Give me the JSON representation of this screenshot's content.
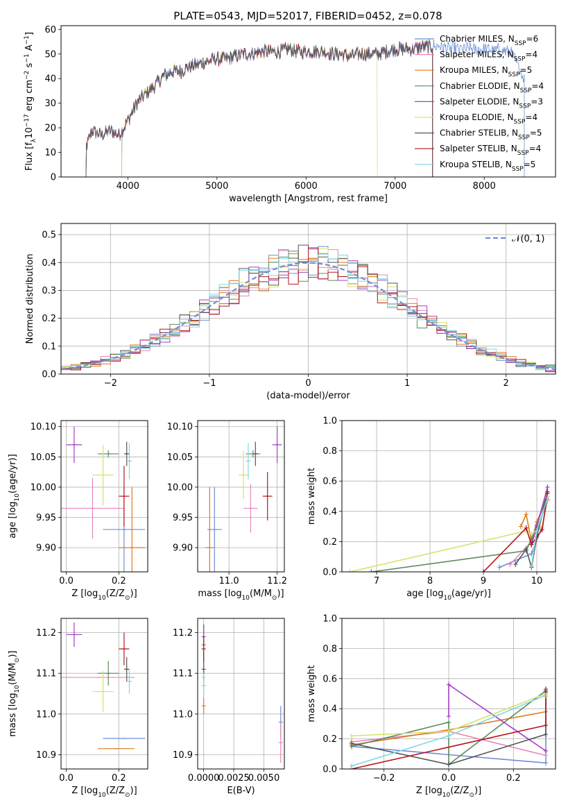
{
  "colors": {
    "series": [
      "#6c8ed6",
      "#e886b8",
      "#e07a1f",
      "#5c8a5c",
      "#a23fc0",
      "#d6e26c",
      "#555555",
      "#b5161c",
      "#7fd8e3"
    ],
    "gauss": "#6d8fd8"
  },
  "figure_title": "PLATE=0543, MJD=52017, FIBERID=0452, z=0.078",
  "chart_data": [
    {
      "id": "spectrum",
      "type": "line",
      "xlabel": "wavelength [Angstrom, rest frame]",
      "ylabel_parts": [
        "Flux [f",
        "λ",
        "10",
        "−17",
        " erg cm",
        "−2",
        " s",
        "−1",
        " A",
        "−1",
        "]"
      ],
      "xlim": [
        3250,
        8800
      ],
      "ylim": [
        0,
        61.5
      ],
      "xticks": [
        4000,
        5000,
        6000,
        7000,
        8000
      ],
      "yticks": [
        0,
        10,
        20,
        30,
        40,
        50,
        60
      ],
      "grid": false,
      "legend_position": "right",
      "legend": [
        {
          "label": "Chabrier MILES, N",
          "sub": "SSP",
          "suffix": "=6"
        },
        {
          "label": "Salpeter MILES, N",
          "sub": "SSP",
          "suffix": "=4"
        },
        {
          "label": "Kroupa MILES, N",
          "sub": "SSP",
          "suffix": "=5"
        },
        {
          "label": "Chabrier ELODIE, N",
          "sub": "SSP",
          "suffix": "=4"
        },
        {
          "label": "Salpeter ELODIE, N",
          "sub": "SSP",
          "suffix": "=3"
        },
        {
          "label": "Kroupa ELODIE, N",
          "sub": "SSP",
          "suffix": "=4"
        },
        {
          "label": "Chabrier STELIB, N",
          "sub": "SSP",
          "suffix": "=5"
        },
        {
          "label": "Salpeter STELIB, N",
          "sub": "SSP",
          "suffix": "=4"
        },
        {
          "label": "Kroupa STELIB, N",
          "sub": "SSP",
          "suffix": "=5"
        }
      ],
      "anchors": {
        "x": [
          3530,
          3600,
          3700,
          3800,
          3900,
          4000,
          4100,
          4200,
          4300,
          4400,
          4500,
          4600,
          4700,
          4800,
          4900,
          5000,
          5100,
          5200,
          5300,
          5400,
          5500,
          5600,
          5700,
          5800,
          5900,
          6000,
          6100,
          6200,
          6300,
          6400,
          6500,
          6600,
          6700,
          6800,
          6900,
          7000,
          7100,
          7200,
          7300,
          7400,
          7500,
          7600,
          7700,
          8000,
          8300,
          8450
        ],
        "y": [
          12,
          19,
          17,
          19,
          17,
          23,
          30,
          34,
          37,
          41,
          43,
          43,
          45,
          46,
          47,
          48,
          48,
          49,
          50,
          50,
          51,
          51,
          51,
          52,
          51,
          51,
          51,
          51,
          50,
          50,
          49,
          50,
          50,
          50,
          51,
          52,
          52,
          52,
          53,
          53,
          53,
          52,
          52,
          52,
          51,
          40
        ]
      },
      "ranges": [
        [
          3530,
          8450
        ],
        [
          3530,
          7420
        ],
        [
          3530,
          7420
        ],
        [
          3930,
          7420
        ],
        [
          3930,
          7420
        ],
        [
          3930,
          6800
        ],
        [
          3530,
          7420
        ],
        [
          3530,
          7420
        ],
        [
          3930,
          7420
        ]
      ]
    },
    {
      "id": "residuals",
      "type": "step",
      "xlabel": "(data-model)/error",
      "ylabel": "Normed distribution",
      "xlim": [
        -2.5,
        2.5
      ],
      "ylim": [
        0,
        0.54
      ],
      "xticks": [
        -2,
        -1,
        0,
        1,
        2
      ],
      "xtick_labels": [
        "−2",
        "−1",
        "0",
        "1",
        "2"
      ],
      "yticks": [
        0.0,
        0.1,
        0.2,
        0.3,
        0.4,
        0.5
      ],
      "ytick_labels": [
        "0.0",
        "0.1",
        "0.2",
        "0.3",
        "0.4",
        "0.5"
      ],
      "grid": true,
      "bin_width": 0.1,
      "legend": {
        "label": "𝒩(0, 1)"
      },
      "legend_position": "upper right"
    },
    {
      "id": "z-vs-age",
      "type": "scatter",
      "xlabel_parts": [
        "Z [log",
        "10",
        "(Z/Z",
        "⊙",
        ")]"
      ],
      "ylabel_parts": [
        "age  [log",
        "10",
        "(age/yr)]"
      ],
      "xlim": [
        -0.02,
        0.31
      ],
      "ylim": [
        9.86,
        10.11
      ],
      "xticks": [
        0.0,
        0.2
      ],
      "xtick_labels": [
        "0.0",
        "0.2"
      ],
      "yticks": [
        9.9,
        9.95,
        10.0,
        10.05,
        10.1
      ],
      "ytick_labels": [
        "9.90",
        "9.95",
        "10.00",
        "10.05",
        "10.10"
      ],
      "grid": true,
      "points": [
        {
          "x": 0.22,
          "y": 9.93,
          "xerr": 0.08,
          "yerr": 0.07
        },
        {
          "x": 0.1,
          "y": 9.965,
          "xerr": 0.12,
          "yerr": 0.05
        },
        {
          "x": 0.25,
          "y": 9.9,
          "xerr": 0.05,
          "yerr": 0.1
        },
        {
          "x": 0.16,
          "y": 10.055,
          "xerr": 0.04,
          "yerr": 0.006
        },
        {
          "x": 0.03,
          "y": 10.07,
          "xerr": 0.03,
          "yerr": 0.03
        },
        {
          "x": 0.14,
          "y": 10.02,
          "xerr": 0.04,
          "yerr": 0.05
        },
        {
          "x": 0.23,
          "y": 10.055,
          "xerr": 0.01,
          "yerr": 0.02
        },
        {
          "x": 0.22,
          "y": 9.985,
          "xerr": 0.02,
          "yerr": 0.05
        },
        {
          "x": 0.24,
          "y": 10.043,
          "xerr": 0.01,
          "yerr": 0.03
        }
      ]
    },
    {
      "id": "mass-vs-age",
      "type": "scatter",
      "xlabel_parts": [
        "mass [log",
        "10",
        "(M/M",
        "⊙",
        ")]"
      ],
      "xlim": [
        10.87,
        11.23
      ],
      "ylim": [
        9.86,
        10.11
      ],
      "xticks": [
        11.0,
        11.2
      ],
      "xtick_labels": [
        "11.0",
        "11.2"
      ],
      "yticks": [
        9.9,
        9.95,
        10.0,
        10.05,
        10.1
      ],
      "ytick_labels": [
        "9.90",
        "9.95",
        "10.00",
        "10.05",
        "10.10"
      ],
      "grid": true,
      "points": [
        {
          "x": 10.94,
          "y": 9.93,
          "xerr": 0.03,
          "yerr": 0.07
        },
        {
          "x": 11.09,
          "y": 9.965,
          "xerr": 0.03,
          "yerr": 0.04
        },
        {
          "x": 10.92,
          "y": 9.9,
          "xerr": 0.02,
          "yerr": 0.1
        },
        {
          "x": 11.1,
          "y": 10.055,
          "xerr": 0.03,
          "yerr": 0.006
        },
        {
          "x": 11.2,
          "y": 10.07,
          "xerr": 0.02,
          "yerr": 0.03
        },
        {
          "x": 11.06,
          "y": 10.02,
          "xerr": 0.02,
          "yerr": 0.04
        },
        {
          "x": 11.11,
          "y": 10.055,
          "xerr": 0.01,
          "yerr": 0.02
        },
        {
          "x": 11.16,
          "y": 9.985,
          "xerr": 0.02,
          "yerr": 0.04
        },
        {
          "x": 11.08,
          "y": 10.043,
          "xerr": 0.01,
          "yerr": 0.03
        }
      ]
    },
    {
      "id": "age-vs-weight",
      "type": "line",
      "xlabel_parts": [
        "age  [log",
        "10",
        "(age/yr)]"
      ],
      "ylabel": "mass weight",
      "xlim": [
        6.35,
        10.35
      ],
      "ylim": [
        0,
        1.0
      ],
      "xticks": [
        7,
        8,
        9,
        10
      ],
      "xtick_labels": [
        "7",
        "8",
        "9",
        "10"
      ],
      "yticks": [
        0.0,
        0.2,
        0.4,
        0.6,
        0.8,
        1.0
      ],
      "ytick_labels": [
        "0.0",
        "0.2",
        "0.4",
        "0.6",
        "0.8",
        "1.0"
      ],
      "grid": true,
      "series": [
        {
          "x": [
            9.3,
            9.9,
            10.1,
            10.2
          ],
          "y": [
            0.03,
            0.12,
            0.3,
            0.48
          ]
        },
        {
          "x": [
            9.5,
            9.9,
            10.0,
            10.2
          ],
          "y": [
            0.05,
            0.2,
            0.28,
            0.47
          ]
        },
        {
          "x": [
            9.7,
            9.8,
            9.9,
            10.0,
            10.2
          ],
          "y": [
            0.3,
            0.38,
            0.2,
            0.33,
            0.5
          ]
        },
        {
          "x": [
            6.9,
            9.8,
            9.9,
            10.0,
            10.2
          ],
          "y": [
            0.0,
            0.14,
            0.22,
            0.31,
            0.52
          ]
        },
        {
          "x": [
            9.9,
            10.0,
            10.2
          ],
          "y": [
            0.18,
            0.3,
            0.56
          ]
        },
        {
          "x": [
            6.5,
            9.8,
            9.9,
            10.1,
            10.2
          ],
          "y": [
            0.0,
            0.27,
            0.25,
            0.3,
            0.5
          ]
        },
        {
          "x": [
            9.6,
            9.8,
            9.9,
            10.0,
            10.2
          ],
          "y": [
            0.05,
            0.15,
            0.03,
            0.23,
            0.53
          ]
        },
        {
          "x": [
            9.0,
            9.8,
            9.9,
            10.1,
            10.2
          ],
          "y": [
            0.0,
            0.29,
            0.18,
            0.28,
            0.52
          ]
        },
        {
          "x": [
            9.9,
            10.0,
            10.2
          ],
          "y": [
            0.04,
            0.27,
            0.49
          ]
        }
      ]
    },
    {
      "id": "z-vs-mass",
      "type": "scatter",
      "xlabel_parts": [
        "Z [log",
        "10",
        "(Z/Z",
        "⊙",
        ")]"
      ],
      "ylabel_parts": [
        "mass [log",
        "10",
        "(M/M",
        "⊙",
        ")]"
      ],
      "xlim": [
        -0.02,
        0.31
      ],
      "ylim": [
        10.865,
        11.235
      ],
      "xticks": [
        0.0,
        0.2
      ],
      "xtick_labels": [
        "0.0",
        "0.2"
      ],
      "yticks": [
        10.9,
        11.0,
        11.1,
        11.2
      ],
      "ytick_labels": [
        "10.9",
        "11.0",
        "11.1",
        "11.2"
      ],
      "grid": true,
      "points": [
        {
          "x": 0.22,
          "y": 10.94,
          "xerr": 0.08,
          "yerr": 0.0
        },
        {
          "x": 0.12,
          "y": 11.09,
          "xerr": 0.14,
          "yerr": 0.0
        },
        {
          "x": 0.19,
          "y": 10.915,
          "xerr": 0.07,
          "yerr": 0.0
        },
        {
          "x": 0.16,
          "y": 11.1,
          "xerr": 0.04,
          "yerr": 0.03
        },
        {
          "x": 0.03,
          "y": 11.195,
          "xerr": 0.03,
          "yerr": 0.03
        },
        {
          "x": 0.14,
          "y": 11.055,
          "xerr": 0.04,
          "yerr": 0.05
        },
        {
          "x": 0.23,
          "y": 11.11,
          "xerr": 0.01,
          "yerr": 0.03
        },
        {
          "x": 0.22,
          "y": 11.16,
          "xerr": 0.02,
          "yerr": 0.04
        },
        {
          "x": 0.24,
          "y": 11.08,
          "xerr": 0.01,
          "yerr": 0.03
        }
      ]
    },
    {
      "id": "ebv-vs-mass",
      "type": "scatter",
      "xlabel": "E(B-V)",
      "xlim": [
        -0.0005,
        0.0067
      ],
      "ylim": [
        10.865,
        11.235
      ],
      "xticks": [
        0.0,
        0.0025,
        0.005
      ],
      "xtick_labels": [
        "0.0000",
        "0.0025",
        "0.0050"
      ],
      "yticks": [
        10.9,
        11.0,
        11.1,
        11.2
      ],
      "ytick_labels": [
        "10.9",
        "11.0",
        "11.1",
        "11.2"
      ],
      "grid": true,
      "points": [
        {
          "x": 0.0064,
          "y": 10.98,
          "xerr": 0.0,
          "yerr": 0.04
        },
        {
          "x": 0.0064,
          "y": 10.93,
          "xerr": 0.0,
          "yerr": 0.05
        },
        {
          "x": 0.0,
          "y": 11.02,
          "xerr": 0.0,
          "yerr": 0.02
        },
        {
          "x": 0.0,
          "y": 11.17,
          "xerr": 0.0,
          "yerr": 0.05
        },
        {
          "x": 0.0,
          "y": 11.19,
          "xerr": 0.0,
          "yerr": 0.03
        },
        {
          "x": 0.0,
          "y": 11.09,
          "xerr": 0.0,
          "yerr": 0.04
        },
        {
          "x": 0.0,
          "y": 11.11,
          "xerr": 0.0,
          "yerr": 0.03
        },
        {
          "x": 0.0,
          "y": 11.16,
          "xerr": 0.0,
          "yerr": 0.03
        },
        {
          "x": 0.0,
          "y": 11.07,
          "xerr": 0.0,
          "yerr": 0.03
        }
      ]
    },
    {
      "id": "z-vs-weight",
      "type": "line",
      "xlabel_parts": [
        "Z [log",
        "10",
        "(Z/Z",
        "⊙",
        ")]"
      ],
      "ylabel": "mass weight",
      "xlim": [
        -0.33,
        0.33
      ],
      "ylim": [
        0,
        1.0
      ],
      "xticks": [
        -0.2,
        0.0,
        0.2
      ],
      "xtick_labels": [
        "−0.2",
        "0.0",
        "0.2"
      ],
      "yticks": [
        0.0,
        0.2,
        0.4,
        0.6,
        0.8,
        1.0
      ],
      "ytick_labels": [
        "0.0",
        "0.2",
        "0.4",
        "0.6",
        "0.8",
        "1.0"
      ],
      "grid": true,
      "series": [
        {
          "x": [
            -0.3,
            0.3,
            0.3
          ],
          "y": [
            0.15,
            0.04,
            0.48
          ]
        },
        {
          "x": [
            -0.3,
            0.0,
            0.3
          ],
          "y": [
            0.18,
            0.25,
            0.09
          ]
        },
        {
          "x": [
            -0.3,
            0.0,
            0.3
          ],
          "y": [
            0.16,
            0.26,
            0.38
          ]
        },
        {
          "x": [
            -0.3,
            0.0,
            0.0,
            0.3
          ],
          "y": [
            0.15,
            0.31,
            0.03,
            0.52
          ]
        },
        {
          "x": [
            0.0,
            0.0,
            0.3
          ],
          "y": [
            0.35,
            0.56,
            0.12
          ]
        },
        {
          "x": [
            -0.3,
            0.0,
            0.3,
            0.3
          ],
          "y": [
            0.22,
            0.25,
            0.5,
            0.48
          ]
        },
        {
          "x": [
            -0.3,
            0.0,
            0.3,
            0.3
          ],
          "y": [
            0.17,
            0.03,
            0.23,
            0.53
          ]
        },
        {
          "x": [
            -0.3,
            0.3,
            0.3
          ],
          "y": [
            0.0,
            0.29,
            0.51
          ]
        },
        {
          "x": [
            -0.3,
            0.0,
            0.3
          ],
          "y": [
            0.02,
            0.22,
            0.49
          ]
        }
      ]
    }
  ]
}
